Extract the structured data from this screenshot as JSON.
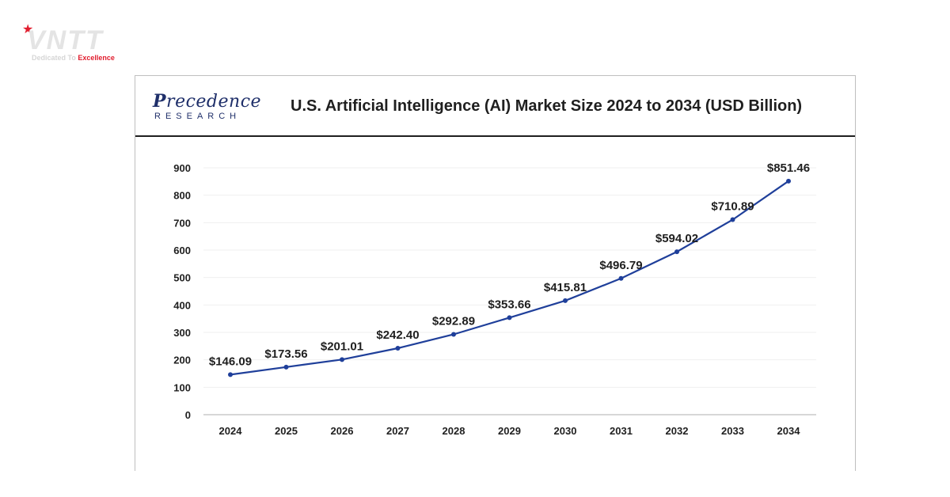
{
  "watermark": {
    "brand": "VNTT",
    "tagline_prefix": "Dedicated To ",
    "tagline_highlight": "Excellence"
  },
  "logo": {
    "initial": "P",
    "rest": "recedence",
    "sub": "RESEARCH"
  },
  "colors": {
    "line": "#1f3f9a",
    "axis": "#bfbfbf",
    "text": "#1f1f1f"
  },
  "chart_data": {
    "type": "line",
    "title": "U.S. Artificial Intelligence (AI) Market Size 2024 to 2034 (USD Billion)",
    "xlabel": "",
    "ylabel": "",
    "ylim": [
      0,
      900
    ],
    "yticks": [
      "0",
      "100",
      "200",
      "300",
      "400",
      "500",
      "600",
      "700",
      "800",
      "900"
    ],
    "ytick_values": [
      0,
      100,
      200,
      300,
      400,
      500,
      600,
      700,
      800,
      900
    ],
    "categories": [
      "2024",
      "2025",
      "2026",
      "2027",
      "2028",
      "2029",
      "2030",
      "2031",
      "2032",
      "2033",
      "2034"
    ],
    "values": [
      146.09,
      173.56,
      201.01,
      242.4,
      292.89,
      353.66,
      415.81,
      496.79,
      594.02,
      710.89,
      851.46
    ],
    "data_labels": [
      "$146.09",
      "$173.56",
      "$201.01",
      "$242.40",
      "$292.89",
      "$353.66",
      "$415.81",
      "$496.79",
      "$594.02",
      "$710.89",
      "$851.46"
    ],
    "grid": true,
    "legend": "none"
  }
}
